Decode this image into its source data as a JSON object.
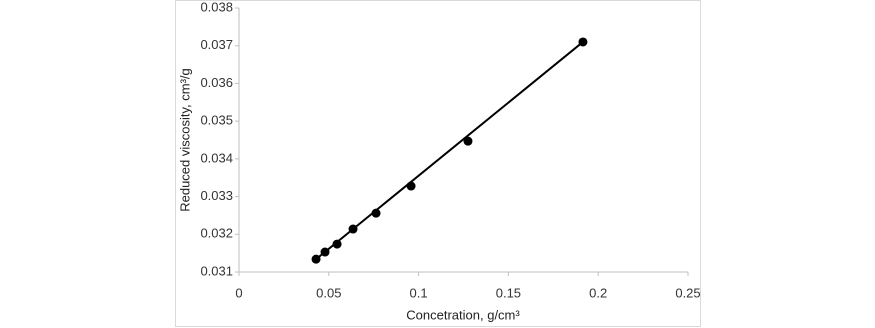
{
  "chart_data": {
    "type": "scatter",
    "x_label": "Concetration, g/cm³",
    "y_label": "Reduced viscosity, cm³/g",
    "x": [
      0.0429,
      0.0479,
      0.0546,
      0.0635,
      0.0763,
      0.0958,
      0.1275,
      0.1915
    ],
    "values": [
      0.03134,
      0.03153,
      0.03174,
      0.03214,
      0.03256,
      0.03328,
      0.03447,
      0.0371
    ],
    "color": "#000000",
    "trendline": {
      "x": [
        0.0429,
        0.1915
      ],
      "y": [
        0.03134,
        0.0371
      ],
      "color": "#000000"
    },
    "xlim": [
      0,
      0.25
    ],
    "xticks": [
      0,
      0.05,
      0.1,
      0.15,
      0.2,
      0.25
    ],
    "ylim": [
      0.031,
      0.038
    ],
    "yticks": [
      0.031,
      0.032,
      0.033,
      0.034,
      0.035,
      0.036,
      0.037,
      0.038
    ],
    "grid": false
  }
}
